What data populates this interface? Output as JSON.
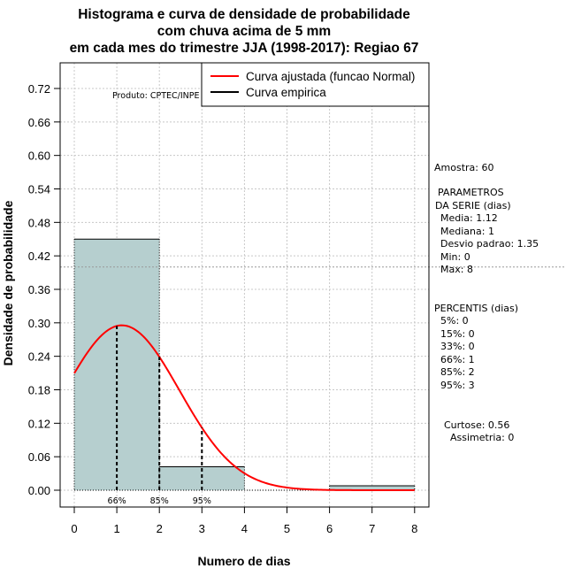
{
  "chart_data": {
    "type": "histogram",
    "title_lines": [
      "Histograma e curva de densidade de probabilidade",
      "com chuva acima de 5 mm",
      "em cada mes do trimestre JJA (1998-2017): Regiao 67"
    ],
    "xlabel": "Numero de dias",
    "ylabel": "Densidade de probabilidade",
    "xlim": [
      0,
      8
    ],
    "ylim": [
      0,
      0.72
    ],
    "x_ticks": [
      0,
      1,
      2,
      3,
      4,
      5,
      6,
      7,
      8
    ],
    "y_ticks": [
      "0.00",
      "0.06",
      "0.12",
      "0.18",
      "0.24",
      "0.30",
      "0.36",
      "0.42",
      "0.48",
      "0.54",
      "0.60",
      "0.66",
      "0.72"
    ],
    "bins": [
      {
        "start": 0,
        "end": 2,
        "density": 0.45
      },
      {
        "start": 2,
        "end": 4,
        "density": 0.042
      },
      {
        "start": 6,
        "end": 8,
        "density": 0.008
      }
    ],
    "dotted_reference_line": 0.4,
    "normal_curve": {
      "name": "Curva ajustada (funcao Normal)",
      "mean": 1.12,
      "sd": 1.35,
      "color": "#ff0000"
    },
    "percentile_markers": [
      {
        "x": 1,
        "label": "66%"
      },
      {
        "x": 2,
        "label": "85%"
      },
      {
        "x": 3,
        "label": "95%"
      }
    ],
    "legend": [
      {
        "label": "Curva ajustada (funcao Normal)",
        "color": "#ff0000"
      },
      {
        "label": "Curva empirica",
        "color": "#000000"
      }
    ],
    "credit": "Produto: CPTEC/INPE",
    "bar_color": "#b6cfcf"
  },
  "stats": {
    "sample": "Amostra: 60",
    "params_title_1": "PARAMETROS",
    "params_title_2": "DA SERIE (dias)",
    "media": "Media: 1.12",
    "mediana": "Mediana: 1",
    "desvio": "Desvio padrao: 1.35",
    "min": "Min: 0",
    "max": "Max: 8",
    "percentis_title": "PERCENTIS (dias)",
    "p5": "5%: 0",
    "p15": "15%: 0",
    "p33": "33%: 0",
    "p66": "66%: 1",
    "p85": "85%: 2",
    "p95": "95%: 3",
    "curtose": "Curtose: 0.56",
    "assimetria": "Assimetria: 0"
  }
}
